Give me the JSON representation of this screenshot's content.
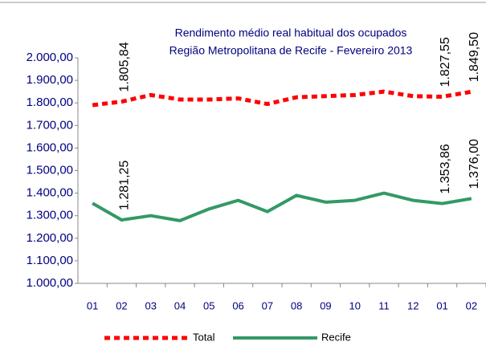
{
  "chart_data": {
    "type": "line",
    "title": "Rendimento médio real habitual dos ocupados",
    "subtitle": "Região Metropolitana de Recife - Fevereiro 2013",
    "categories": [
      "01",
      "02",
      "03",
      "04",
      "05",
      "06",
      "07",
      "08",
      "09",
      "10",
      "11",
      "12",
      "01",
      "02"
    ],
    "series": [
      {
        "name": "Total",
        "color": "#ff0000",
        "dash": true,
        "values": [
          1790,
          1805.84,
          1835,
          1815,
          1815,
          1820,
          1795,
          1825,
          1830,
          1835,
          1850,
          1830,
          1827.55,
          1849.5
        ],
        "value_labels": [
          null,
          "1.805,84",
          null,
          null,
          null,
          null,
          null,
          null,
          null,
          null,
          null,
          null,
          "1.827,55",
          "1.849,50"
        ]
      },
      {
        "name": "Recife",
        "color": "#339966",
        "dash": false,
        "values": [
          1355,
          1281.25,
          1300,
          1278,
          1330,
          1368,
          1318,
          1390,
          1360,
          1368,
          1400,
          1368,
          1353.86,
          1376
        ],
        "value_labels": [
          null,
          "1.281,25",
          null,
          null,
          null,
          null,
          null,
          null,
          null,
          null,
          null,
          null,
          "1.353,86",
          "1.376,00"
        ]
      }
    ],
    "ylim": [
      1000,
      2000
    ],
    "yticks": [
      {
        "value": 1000,
        "label": "1.000,00"
      },
      {
        "value": 1100,
        "label": "1.100,00"
      },
      {
        "value": 1200,
        "label": "1.200,00"
      },
      {
        "value": 1300,
        "label": "1.300,00"
      },
      {
        "value": 1400,
        "label": "1.400,00"
      },
      {
        "value": 1500,
        "label": "1.500,00"
      },
      {
        "value": 1600,
        "label": "1.600,00"
      },
      {
        "value": 1700,
        "label": "1.700,00"
      },
      {
        "value": 1800,
        "label": "1.800,00"
      },
      {
        "value": 1900,
        "label": "1.900,00"
      },
      {
        "value": 2000,
        "label": "2.000,00"
      }
    ],
    "legend": "bottom"
  }
}
